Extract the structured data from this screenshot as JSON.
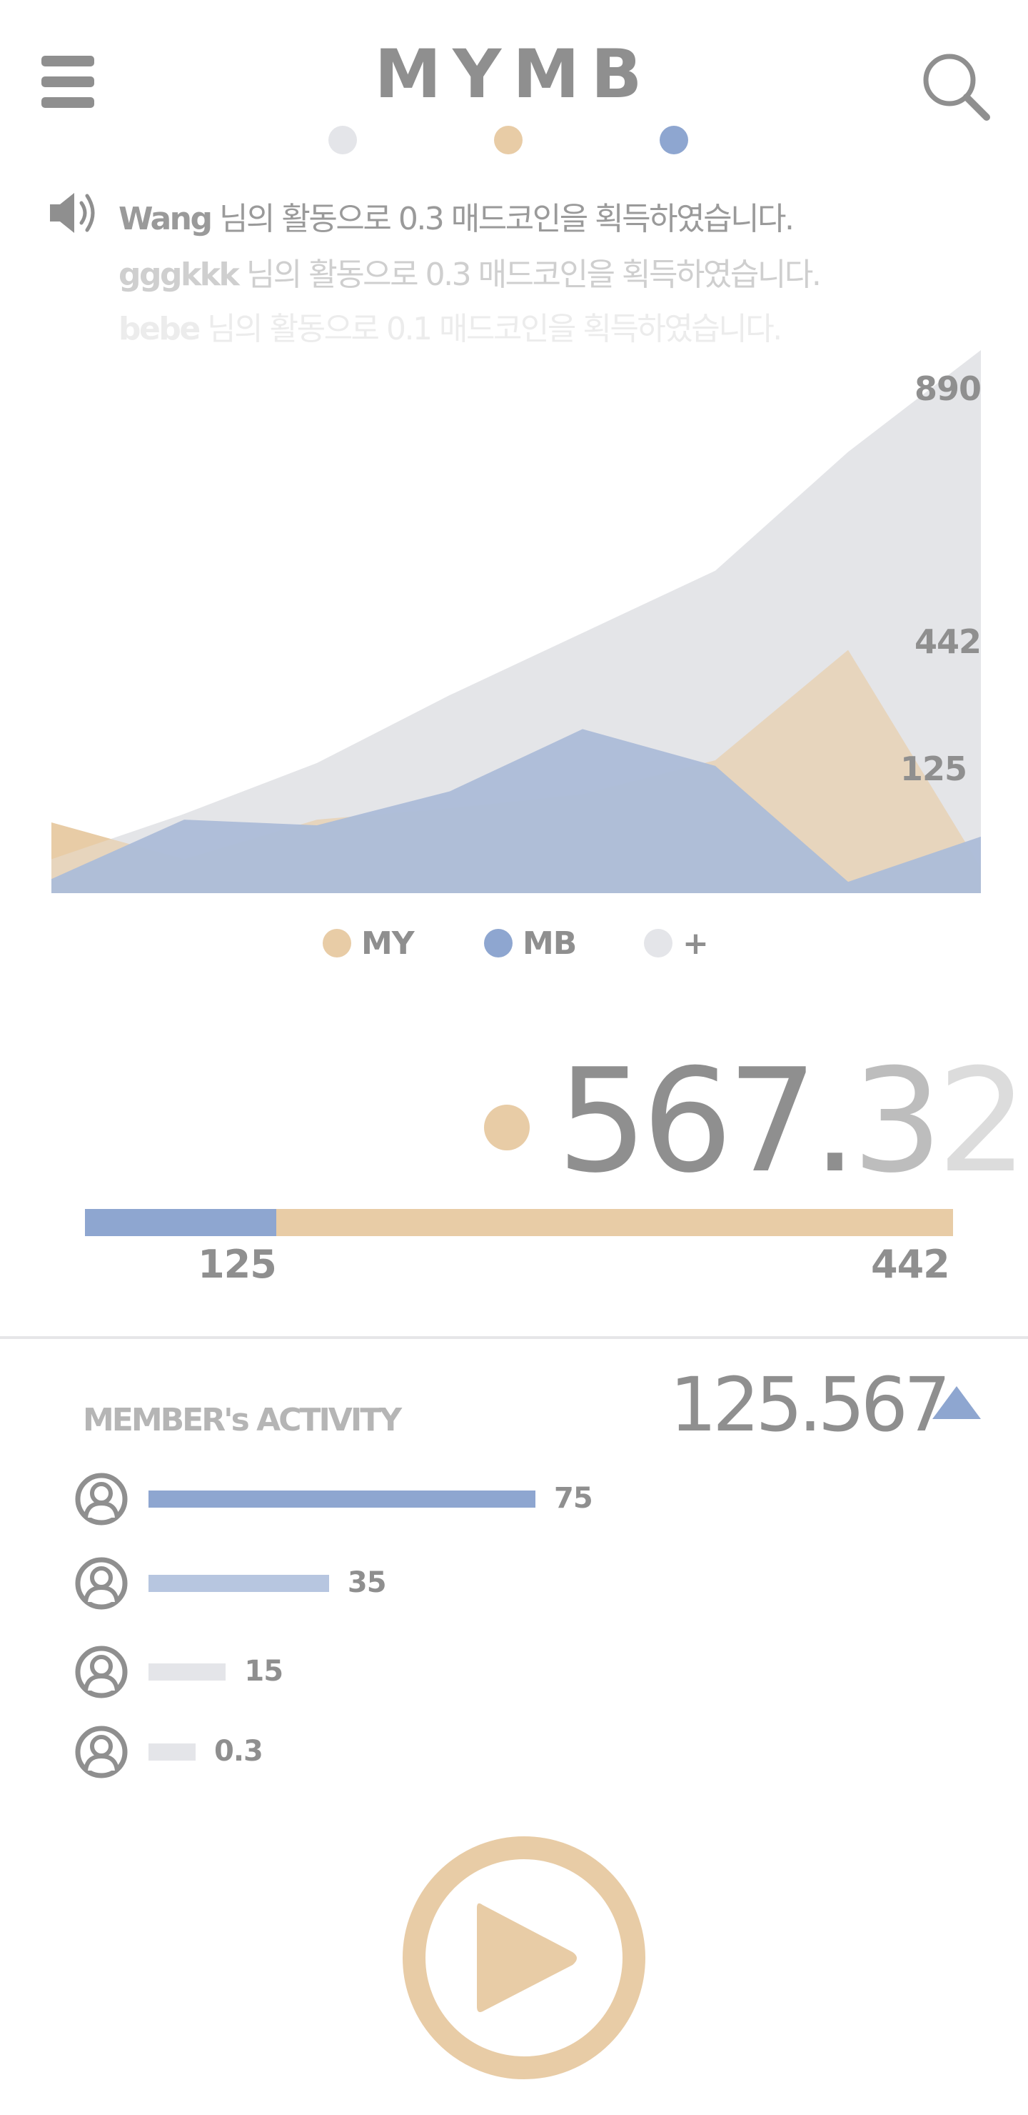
{
  "header": {
    "title": "MYMB",
    "menu_icon": "hamburger-menu-icon",
    "search_icon": "search-icon"
  },
  "page_indicator": {
    "dots": [
      {
        "color": "#e4e5e9",
        "active": false
      },
      {
        "color": "#e8cca6",
        "active": false
      },
      {
        "color": "#8ea6d0",
        "active": false
      }
    ]
  },
  "feed": {
    "icon": "speaker-icon",
    "items": [
      {
        "user": "Wang",
        "message": " 님의 활동으로 0.3 매드코인을 획득하였습니다.",
        "color": "#9a9a9a"
      },
      {
        "user": "gggkkk",
        "message": " 님의 활동으로 0.3 매드코인을 획득하였습니다.",
        "color": "#cfcfcf"
      },
      {
        "user": "bebe",
        "message": " 님의 활동으로 0.1 매드코인을 획득하였습니다.",
        "color": "#ececec"
      }
    ]
  },
  "chart_data": {
    "type": "area",
    "title": "",
    "xlabel": "",
    "ylabel": "",
    "ylim": [
      0,
      960
    ],
    "x": [
      0,
      1,
      2,
      3,
      4,
      5,
      6,
      7
    ],
    "annotations": [
      "890",
      "442",
      "125"
    ],
    "series": [
      {
        "name": "+",
        "color": "#e4e5e9",
        "values": [
          60,
          140,
          230,
          350,
          460,
          570,
          780,
          960
        ]
      },
      {
        "name": "MY",
        "color": "#e8cca6",
        "values": [
          125,
          60,
          130,
          150,
          175,
          235,
          430,
          45
        ]
      },
      {
        "name": "MB",
        "color": "#8ea6d0",
        "values": [
          25,
          130,
          120,
          180,
          290,
          225,
          20,
          100
        ]
      }
    ]
  },
  "legend": [
    {
      "label": "MY",
      "color": "#e8cca6"
    },
    {
      "label": "MB",
      "color": "#8ea6d0"
    },
    {
      "label": "+",
      "color": "#e4e5e9"
    }
  ],
  "balance": {
    "value_main": "567.",
    "value_d1": "3",
    "value_d2": "2",
    "dot_color": "#e8cca6",
    "split": {
      "left_value": "125",
      "right_value": "442",
      "left_color": "#8ea6d0",
      "right_color": "#e8cca6"
    }
  },
  "activity": {
    "title": "MEMBER's ACTIVITY",
    "total": "125.567",
    "trend_icon": "triangle-up-icon",
    "trend_color": "#8ea6d0",
    "members": [
      {
        "value": "75",
        "amount": 75,
        "color": "#8ea6d0"
      },
      {
        "value": "35",
        "amount": 35,
        "color": "#b7c6e0"
      },
      {
        "value": "15",
        "amount": 15,
        "color": "#e4e5e9"
      },
      {
        "value": "0.3",
        "amount": 0.3,
        "color": "#e4e5e9"
      }
    ]
  },
  "play": {
    "icon": "play-icon",
    "color": "#e8cca6"
  }
}
